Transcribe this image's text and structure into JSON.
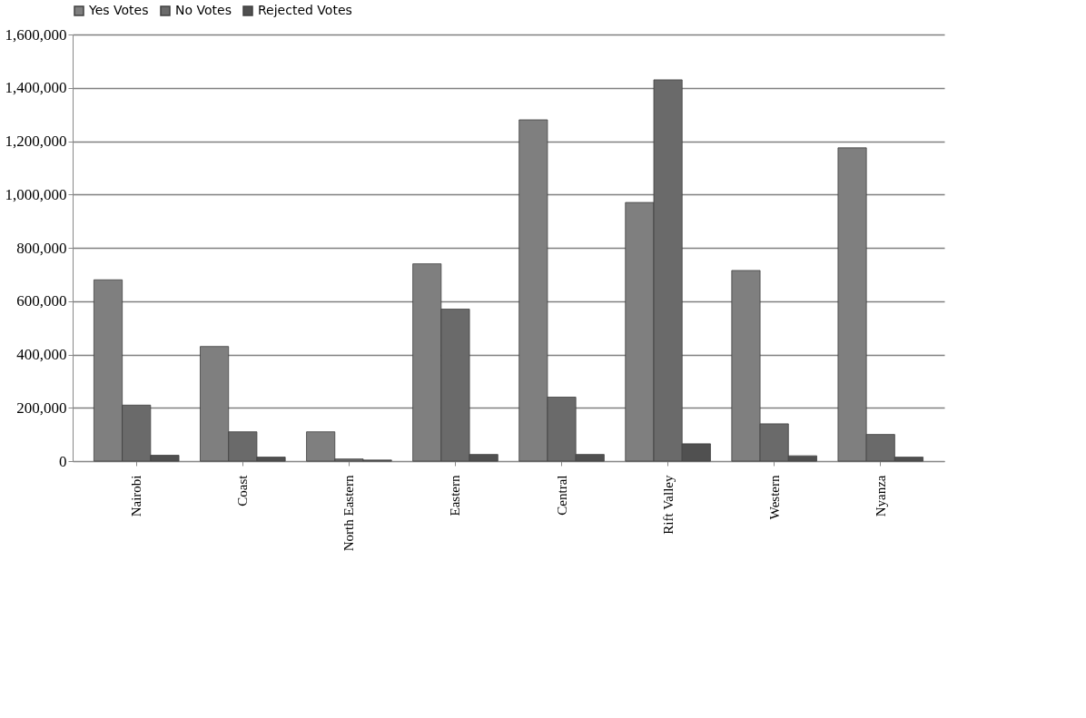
{
  "chart_data": {
    "type": "bar",
    "categories": [
      "Nairobi",
      "Coast",
      "North Eastern",
      "Eastern",
      "Central",
      "Rift Valley",
      "Western",
      "Nyanza"
    ],
    "series": [
      {
        "name": "Yes Votes",
        "color": "#7f7f7f",
        "values": [
          680000,
          430000,
          110000,
          740000,
          1280000,
          970000,
          715000,
          1175000
        ]
      },
      {
        "name": "No Votes",
        "color": "#6a6a6a",
        "values": [
          210000,
          110000,
          8000,
          570000,
          240000,
          1430000,
          140000,
          100000
        ]
      },
      {
        "name": "Rejected Votes",
        "color": "#505050",
        "values": [
          22000,
          15000,
          4000,
          25000,
          25000,
          65000,
          20000,
          15000
        ]
      }
    ],
    "ylim": [
      0,
      1600000
    ],
    "yticks": [
      0,
      {
        "value": 200000,
        "label": "200,000"
      },
      {
        "value": 400000,
        "label": "400,000"
      },
      {
        "value": 600000,
        "label": "600,000"
      },
      {
        "value": 800000,
        "label": "800,000"
      },
      {
        "value": 1000000,
        "label": "1,000,000"
      },
      {
        "value": 1200000,
        "label": "1,200,000"
      },
      {
        "value": 1400000,
        "label": "1,400,000"
      },
      {
        "value": 1600000,
        "label": "1,600,000"
      }
    ],
    "grid": "y",
    "legend": "top"
  }
}
